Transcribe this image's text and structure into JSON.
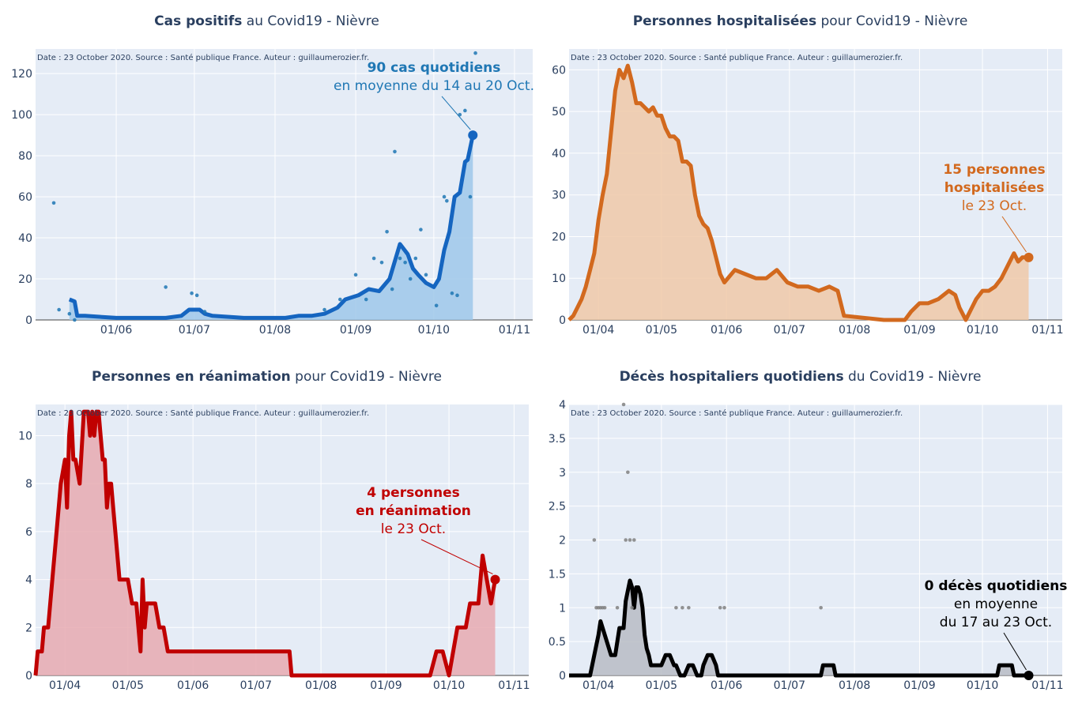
{
  "source_note": "Date : 23 October 2020. Source : Santé publique France. Auteur : guillaumerozier.fr.",
  "colors": {
    "plot_bg": "#e5ecf6",
    "grid": "#ffffff",
    "axis_text": "#2a3f5f",
    "cases": "#1f77b4",
    "cases_line": "#1565c0",
    "cases_fill": "#9fc8ea",
    "hosp": "#d2691e",
    "hosp_fill": "#f0c9a8",
    "rea": "#c00000",
    "rea_fill": "#e8aab0",
    "deaths": "#000000",
    "deaths_fill": "#b9bcc4",
    "deaths_dots": "#808080"
  },
  "panels": [
    {
      "title_bold": "Cas positifs",
      "title_rest": " au Covid19 - Nièvre",
      "annotation": [
        "90 cas quotidiens",
        "en moyenne du 14 au 20 Oct."
      ],
      "annotation_bold_lines": 1
    },
    {
      "title_bold": "Personnes hospitalisées",
      "title_rest": " pour Covid19 - Nièvre",
      "annotation": [
        "15 personnes",
        "hospitalisées",
        "le 23 Oct."
      ],
      "annotation_bold_lines": 2
    },
    {
      "title_bold": "Personnes en réanimation",
      "title_rest": " pour Covid19 - Nièvre",
      "annotation": [
        "4 personnes",
        "en réanimation",
        "le 23 Oct."
      ],
      "annotation_bold_lines": 2
    },
    {
      "title_bold": "Décès hospitaliers quotidiens",
      "title_rest": " du Covid19 - Nièvre",
      "annotation": [
        "0 décès quotidiens",
        "en moyenne",
        "du 17 au 23 Oct."
      ],
      "annotation_bold_lines": 1
    }
  ],
  "chart_data": [
    {
      "type": "line",
      "title": "Cas positifs au Covid19 - Nièvre",
      "x_ticks": [
        "01/06",
        "01/07",
        "01/08",
        "01/09",
        "01/10",
        "01/11"
      ],
      "x_tick_dates": [
        "2020-06-01",
        "2020-07-01",
        "2020-08-01",
        "2020-09-01",
        "2020-10-01",
        "2020-11-01"
      ],
      "x_range": [
        "2020-05-01",
        "2020-11-08"
      ],
      "y_ticks": [
        0,
        20,
        40,
        60,
        80,
        100,
        120
      ],
      "ylim": [
        0,
        132
      ],
      "grid": true,
      "series": [
        {
          "kind": "rolling_mean_line_fill",
          "x": [
            "2020-05-14",
            "2020-05-16",
            "2020-05-17",
            "2020-05-20",
            "2020-06-01",
            "2020-06-20",
            "2020-06-26",
            "2020-06-29",
            "2020-07-03",
            "2020-07-05",
            "2020-07-08",
            "2020-07-20",
            "2020-08-05",
            "2020-08-10",
            "2020-08-15",
            "2020-08-20",
            "2020-08-25",
            "2020-08-28",
            "2020-09-02",
            "2020-09-06",
            "2020-09-10",
            "2020-09-14",
            "2020-09-18",
            "2020-09-21",
            "2020-09-23",
            "2020-09-25",
            "2020-09-28",
            "2020-10-01",
            "2020-10-03",
            "2020-10-05",
            "2020-10-07",
            "2020-10-09",
            "2020-10-11",
            "2020-10-13",
            "2020-10-14",
            "2020-10-16"
          ],
          "y": [
            10,
            9,
            2,
            2,
            1,
            1,
            2,
            5,
            5,
            3,
            2,
            1,
            1,
            2,
            2,
            3,
            6,
            10,
            12,
            15,
            14,
            20,
            37,
            32,
            25,
            22,
            18,
            16,
            20,
            34,
            43,
            60,
            62,
            77,
            78,
            90
          ]
        },
        {
          "kind": "daily_dots",
          "x": [
            "2020-05-08",
            "2020-05-10",
            "2020-05-14",
            "2020-05-16",
            "2020-06-20",
            "2020-06-30",
            "2020-07-02",
            "2020-07-05",
            "2020-08-20",
            "2020-08-26",
            "2020-09-01",
            "2020-09-05",
            "2020-09-08",
            "2020-09-11",
            "2020-09-13",
            "2020-09-15",
            "2020-09-16",
            "2020-09-18",
            "2020-09-20",
            "2020-09-22",
            "2020-09-24",
            "2020-09-26",
            "2020-09-28",
            "2020-10-02",
            "2020-10-05",
            "2020-10-06",
            "2020-10-08",
            "2020-10-10",
            "2020-10-11",
            "2020-10-13",
            "2020-10-15",
            "2020-10-17"
          ],
          "y": [
            57,
            5,
            3,
            0,
            16,
            13,
            12,
            4,
            5,
            10,
            22,
            10,
            30,
            28,
            43,
            15,
            82,
            30,
            28,
            20,
            30,
            44,
            22,
            7,
            60,
            58,
            13,
            12,
            100,
            102,
            60,
            130
          ]
        }
      ]
    },
    {
      "type": "area",
      "title": "Personnes hospitalisées pour Covid19 - Nièvre",
      "x_ticks": [
        "01/04",
        "01/05",
        "01/06",
        "01/07",
        "01/08",
        "01/09",
        "01/10",
        "01/11"
      ],
      "x_tick_dates": [
        "2020-04-01",
        "2020-05-01",
        "2020-06-01",
        "2020-07-01",
        "2020-08-01",
        "2020-09-01",
        "2020-10-01",
        "2020-11-01"
      ],
      "x_range": [
        "2020-03-18",
        "2020-11-08"
      ],
      "y_ticks": [
        0,
        10,
        20,
        30,
        40,
        50,
        60
      ],
      "ylim": [
        0,
        65
      ],
      "grid": true,
      "series": [
        {
          "x": [
            "2020-03-18",
            "2020-03-20",
            "2020-03-22",
            "2020-03-24",
            "2020-03-26",
            "2020-03-28",
            "2020-03-30",
            "2020-04-01",
            "2020-04-03",
            "2020-04-05",
            "2020-04-07",
            "2020-04-09",
            "2020-04-11",
            "2020-04-13",
            "2020-04-15",
            "2020-04-17",
            "2020-04-19",
            "2020-04-21",
            "2020-04-23",
            "2020-04-25",
            "2020-04-27",
            "2020-04-29",
            "2020-05-01",
            "2020-05-03",
            "2020-05-05",
            "2020-05-07",
            "2020-05-09",
            "2020-05-11",
            "2020-05-13",
            "2020-05-15",
            "2020-05-17",
            "2020-05-19",
            "2020-05-21",
            "2020-05-23",
            "2020-05-25",
            "2020-05-27",
            "2020-05-29",
            "2020-05-31",
            "2020-06-05",
            "2020-06-10",
            "2020-06-15",
            "2020-06-20",
            "2020-06-25",
            "2020-06-30",
            "2020-07-05",
            "2020-07-10",
            "2020-07-15",
            "2020-07-20",
            "2020-07-24",
            "2020-07-27",
            "2020-08-15",
            "2020-08-25",
            "2020-08-28",
            "2020-09-01",
            "2020-09-05",
            "2020-09-10",
            "2020-09-15",
            "2020-09-18",
            "2020-09-20",
            "2020-09-23",
            "2020-09-25",
            "2020-09-28",
            "2020-10-01",
            "2020-10-04",
            "2020-10-07",
            "2020-10-10",
            "2020-10-13",
            "2020-10-16",
            "2020-10-18",
            "2020-10-20",
            "2020-10-23"
          ],
          "y": [
            0,
            1,
            3,
            5,
            8,
            12,
            16,
            24,
            30,
            35,
            45,
            55,
            60,
            58,
            61,
            57,
            52,
            52,
            51,
            50,
            51,
            49,
            49,
            46,
            44,
            44,
            43,
            38,
            38,
            37,
            30,
            25,
            23,
            22,
            19,
            15,
            11,
            9,
            12,
            11,
            10,
            10,
            12,
            9,
            8,
            8,
            7,
            8,
            7,
            1,
            0,
            0,
            2,
            4,
            4,
            5,
            7,
            6,
            3,
            0,
            2,
            5,
            7,
            7,
            8,
            10,
            13,
            16,
            14,
            15,
            15
          ]
        }
      ]
    },
    {
      "type": "area",
      "title": "Personnes en réanimation pour Covid19 - Nièvre",
      "x_ticks": [
        "01/04",
        "01/05",
        "01/06",
        "01/07",
        "01/08",
        "01/09",
        "01/10",
        "01/11"
      ],
      "x_tick_dates": [
        "2020-04-01",
        "2020-05-01",
        "2020-06-01",
        "2020-07-01",
        "2020-08-01",
        "2020-09-01",
        "2020-10-01",
        "2020-11-01"
      ],
      "x_range": [
        "2020-03-18",
        "2020-11-08"
      ],
      "y_ticks": [
        0,
        2,
        4,
        6,
        8,
        10
      ],
      "ylim": [
        0,
        11.3
      ],
      "grid": true,
      "series": [
        {
          "x": [
            "2020-03-18",
            "2020-03-19",
            "2020-03-21",
            "2020-03-22",
            "2020-03-24",
            "2020-03-26",
            "2020-03-28",
            "2020-03-30",
            "2020-04-01",
            "2020-04-02",
            "2020-04-03",
            "2020-04-04",
            "2020-04-05",
            "2020-04-06",
            "2020-04-08",
            "2020-04-10",
            "2020-04-12",
            "2020-04-13",
            "2020-04-14",
            "2020-04-15",
            "2020-04-16",
            "2020-04-17",
            "2020-04-18",
            "2020-04-19",
            "2020-04-20",
            "2020-04-21",
            "2020-04-22",
            "2020-04-23",
            "2020-04-24",
            "2020-04-25",
            "2020-04-27",
            "2020-04-29",
            "2020-05-01",
            "2020-05-03",
            "2020-05-05",
            "2020-05-07",
            "2020-05-08",
            "2020-05-09",
            "2020-05-10",
            "2020-05-12",
            "2020-05-14",
            "2020-05-16",
            "2020-05-18",
            "2020-05-20",
            "2020-05-22",
            "2020-05-24",
            "2020-05-26",
            "2020-05-28",
            "2020-06-01",
            "2020-06-15",
            "2020-07-01",
            "2020-07-10",
            "2020-07-17",
            "2020-07-18",
            "2020-08-15",
            "2020-09-01",
            "2020-09-15",
            "2020-09-22",
            "2020-09-25",
            "2020-09-28",
            "2020-10-01",
            "2020-10-03",
            "2020-10-05",
            "2020-10-07",
            "2020-10-09",
            "2020-10-11",
            "2020-10-13",
            "2020-10-15",
            "2020-10-17",
            "2020-10-19",
            "2020-10-21",
            "2020-10-23"
          ],
          "y": [
            0,
            1,
            1,
            2,
            2,
            4,
            6,
            8,
            9,
            7,
            10,
            11,
            9,
            9,
            8,
            11,
            11,
            10,
            11,
            10,
            11,
            11,
            10,
            9,
            9,
            7,
            8,
            8,
            7,
            6,
            4,
            4,
            4,
            3,
            3,
            1,
            4,
            2,
            3,
            3,
            3,
            2,
            2,
            1,
            1,
            1,
            1,
            1,
            1,
            1,
            1,
            1,
            1,
            0,
            0,
            0,
            0,
            0,
            1,
            1,
            0,
            1,
            2,
            2,
            2,
            3,
            3,
            3,
            5,
            4,
            3,
            4
          ]
        }
      ]
    },
    {
      "type": "line",
      "title": "Décès hospitaliers quotidiens du Covid19 - Nièvre",
      "x_ticks": [
        "01/04",
        "01/05",
        "01/06",
        "01/07",
        "01/08",
        "01/09",
        "01/10",
        "01/11"
      ],
      "x_tick_dates": [
        "2020-04-01",
        "2020-05-01",
        "2020-06-01",
        "2020-07-01",
        "2020-08-01",
        "2020-09-01",
        "2020-10-01",
        "2020-11-01"
      ],
      "x_range": [
        "2020-03-18",
        "2020-11-08"
      ],
      "y_ticks": [
        0,
        0.5,
        1,
        1.5,
        2,
        2.5,
        3,
        3.5,
        4
      ],
      "ylim": [
        0,
        4
      ],
      "grid": true,
      "series": [
        {
          "kind": "rolling_mean_line_fill",
          "x": [
            "2020-03-18",
            "2020-03-28",
            "2020-03-30",
            "2020-04-01",
            "2020-04-02",
            "2020-04-03",
            "2020-04-05",
            "2020-04-07",
            "2020-04-09",
            "2020-04-11",
            "2020-04-13",
            "2020-04-14",
            "2020-04-16",
            "2020-04-17",
            "2020-04-18",
            "2020-04-19",
            "2020-04-20",
            "2020-04-21",
            "2020-04-22",
            "2020-04-23",
            "2020-04-24",
            "2020-04-25",
            "2020-04-26",
            "2020-04-27",
            "2020-04-28",
            "2020-04-29",
            "2020-05-01",
            "2020-05-03",
            "2020-05-05",
            "2020-05-07",
            "2020-05-08",
            "2020-05-10",
            "2020-05-12",
            "2020-05-14",
            "2020-05-16",
            "2020-05-18",
            "2020-05-20",
            "2020-05-21",
            "2020-05-23",
            "2020-05-25",
            "2020-05-27",
            "2020-05-28",
            "2020-05-30",
            "2020-06-01",
            "2020-06-15",
            "2020-07-10",
            "2020-07-16",
            "2020-07-17",
            "2020-07-22",
            "2020-07-23",
            "2020-10-08",
            "2020-10-09",
            "2020-10-15",
            "2020-10-16",
            "2020-10-23"
          ],
          "y": [
            0,
            0,
            0.3,
            0.6,
            0.8,
            0.7,
            0.5,
            0.3,
            0.3,
            0.7,
            0.7,
            1.1,
            1.4,
            1.3,
            1.0,
            1.3,
            1.3,
            1.2,
            1.0,
            0.6,
            0.4,
            0.3,
            0.15,
            0.15,
            0.15,
            0.15,
            0.15,
            0.3,
            0.3,
            0.15,
            0.15,
            0,
            0,
            0.15,
            0.15,
            0,
            0,
            0.15,
            0.3,
            0.3,
            0.15,
            0,
            0,
            0,
            0,
            0,
            0,
            0.15,
            0.15,
            0,
            0,
            0.15,
            0.15,
            0,
            0
          ]
        },
        {
          "kind": "daily_dots",
          "x": [
            "2020-03-30",
            "2020-03-31",
            "2020-04-01",
            "2020-04-02",
            "2020-04-03",
            "2020-04-04",
            "2020-04-10",
            "2020-04-13",
            "2020-04-14",
            "2020-04-15",
            "2020-04-16",
            "2020-04-17",
            "2020-04-18",
            "2020-05-08",
            "2020-05-11",
            "2020-05-14",
            "2020-05-29",
            "2020-05-31",
            "2020-07-16"
          ],
          "y": [
            2,
            1,
            1,
            1,
            1,
            1,
            1,
            4,
            2,
            3,
            2,
            1,
            2,
            1,
            1,
            1,
            1,
            1,
            1
          ]
        }
      ]
    }
  ]
}
